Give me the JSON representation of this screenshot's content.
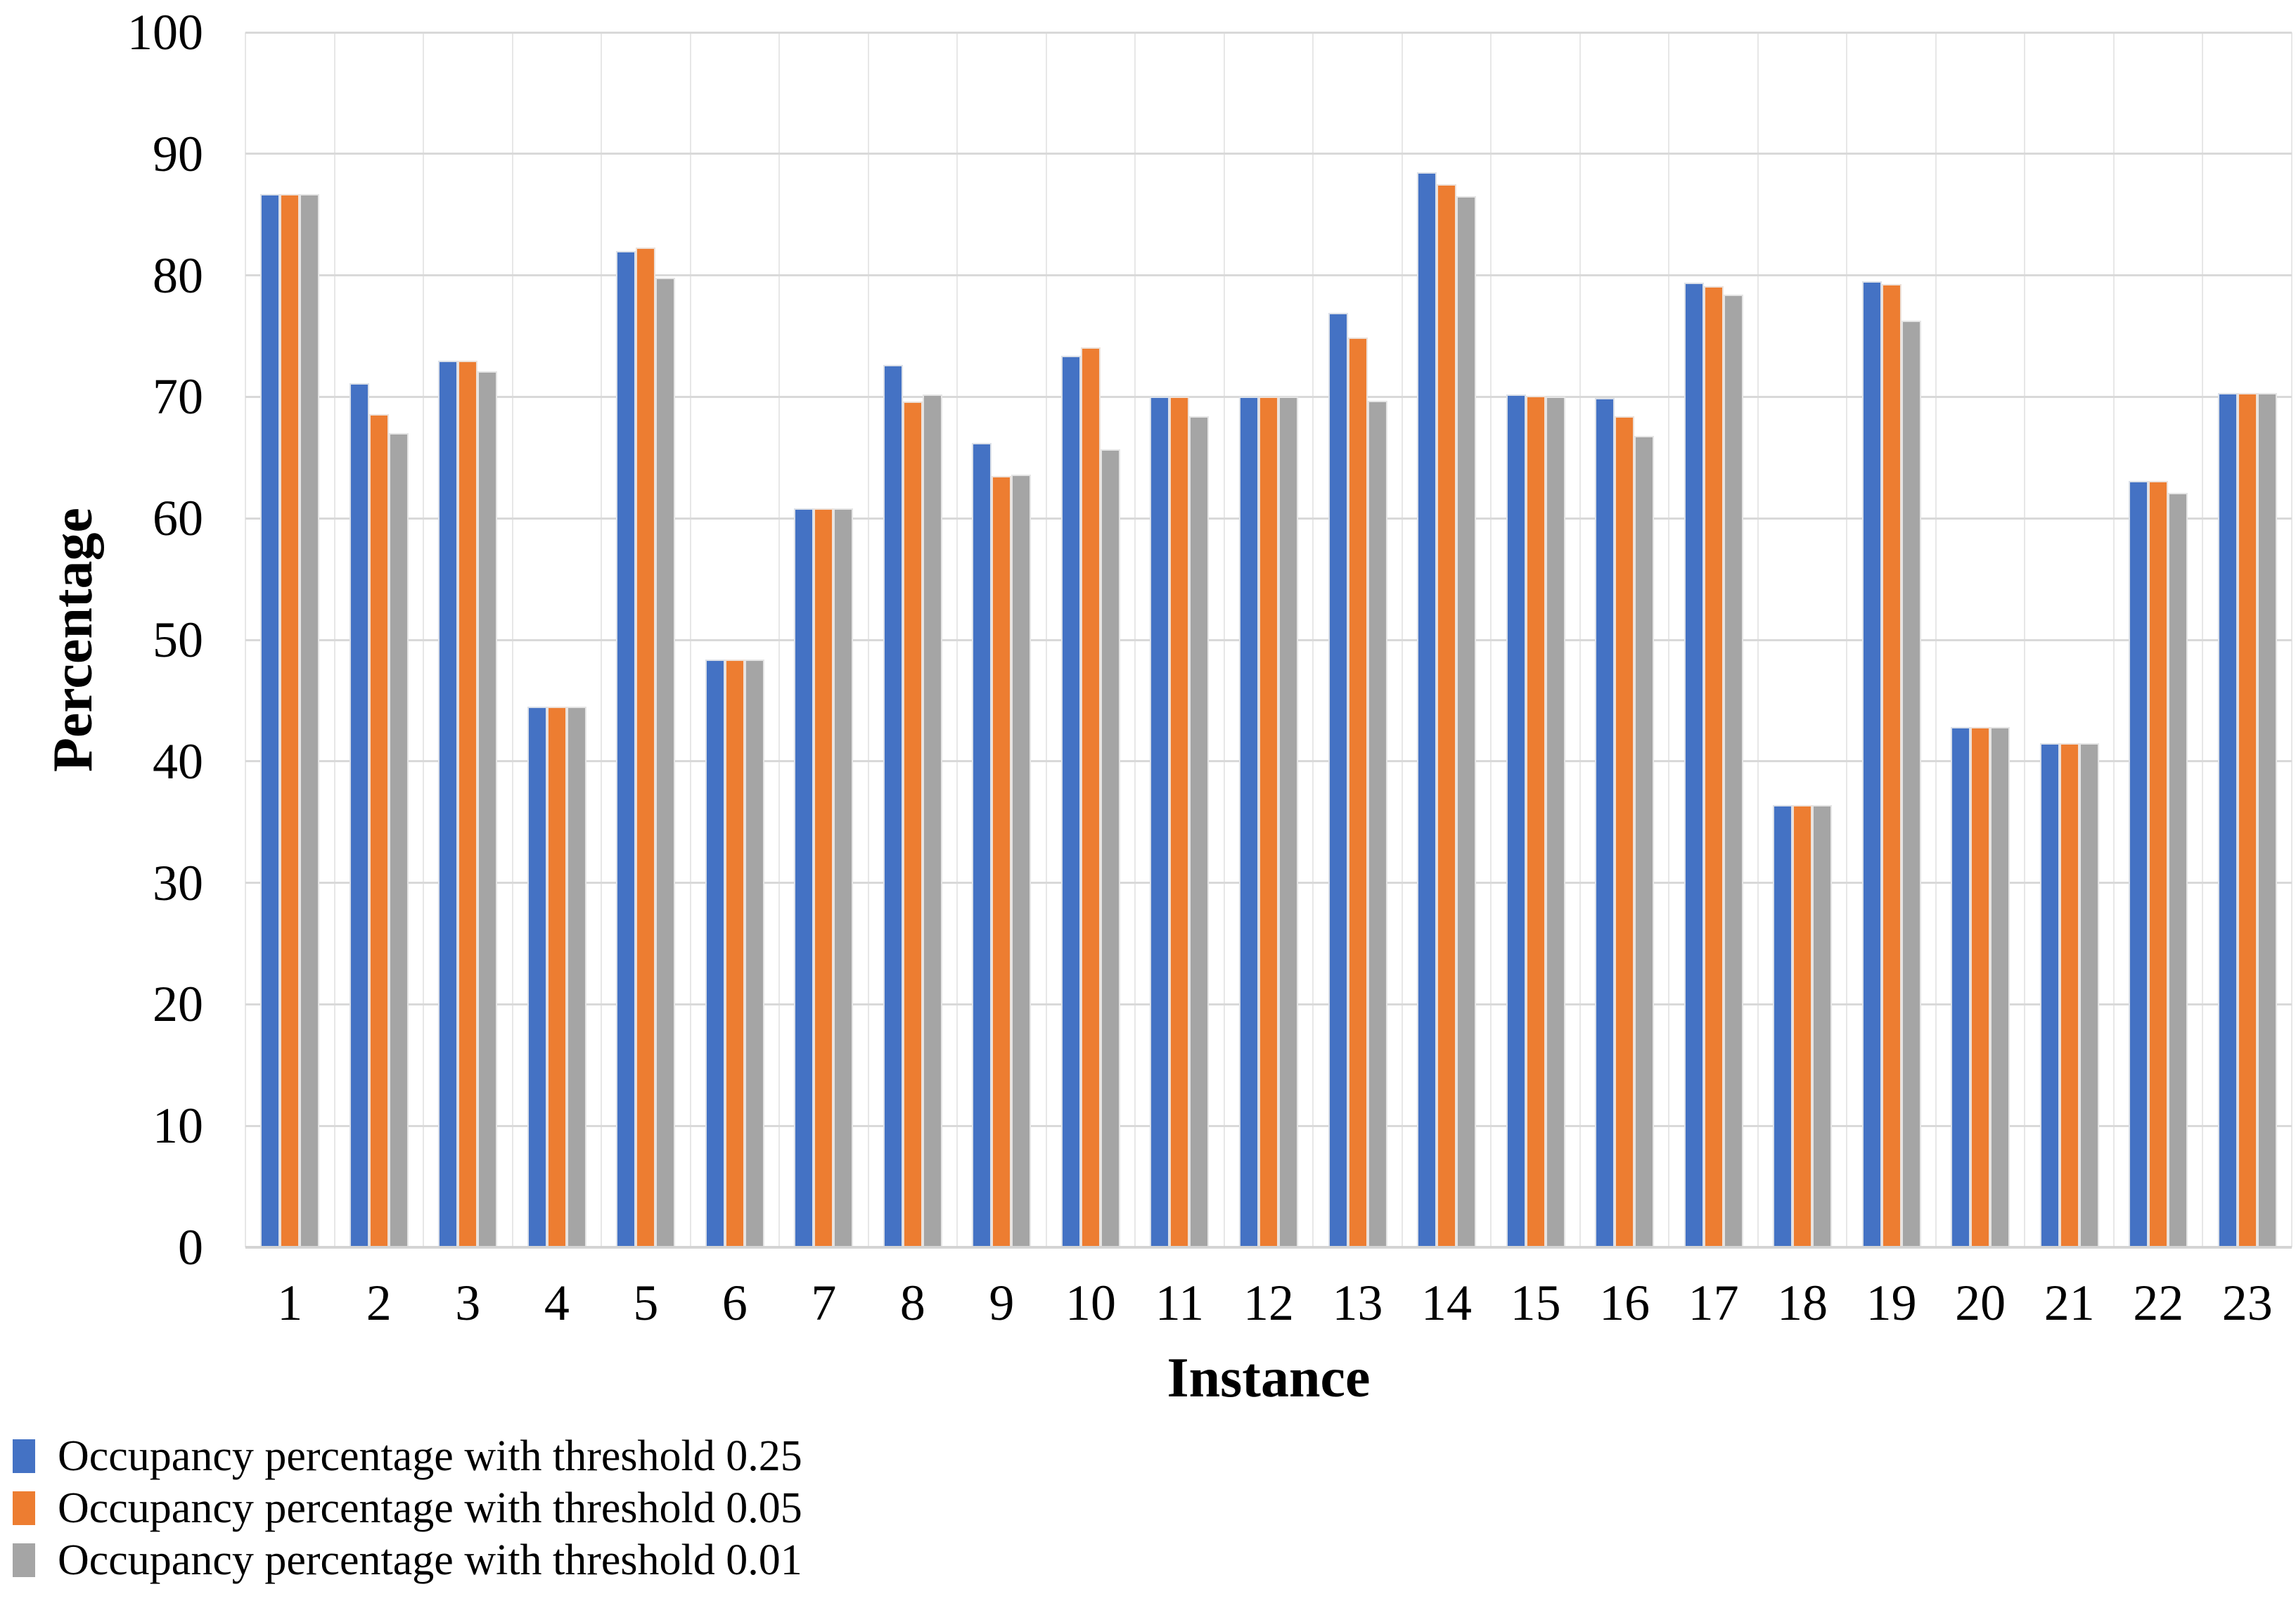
{
  "chart_data": {
    "type": "bar",
    "title": "",
    "xlabel": "Instance",
    "ylabel": "Percentage",
    "ylim": [
      0,
      100
    ],
    "ytick_step": 10,
    "grid": {
      "horizontal": true,
      "vertical": true
    },
    "legend_position": "bottom-left",
    "categories": [
      "1",
      "2",
      "3",
      "4",
      "5",
      "6",
      "7",
      "8",
      "9",
      "10",
      "11",
      "12",
      "13",
      "14",
      "15",
      "16",
      "17",
      "18",
      "19",
      "20",
      "21",
      "22",
      "23"
    ],
    "series": [
      {
        "name": "Occupancy percentage with threshold 0.25",
        "color": "#4472C4",
        "values": [
          86.7,
          71.1,
          73.0,
          44.5,
          82.0,
          48.4,
          60.8,
          72.6,
          66.2,
          73.4,
          70.0,
          70.0,
          76.9,
          88.5,
          70.2,
          69.9,
          79.4,
          36.4,
          79.5,
          42.8,
          41.5,
          63.1,
          70.3
        ]
      },
      {
        "name": "Occupancy percentage with threshold 0.05",
        "color": "#ED7D31",
        "values": [
          86.7,
          68.6,
          73.0,
          44.5,
          82.3,
          48.4,
          60.8,
          69.6,
          63.5,
          74.1,
          70.0,
          70.0,
          74.9,
          87.5,
          70.1,
          68.4,
          79.1,
          36.4,
          79.3,
          42.8,
          41.5,
          63.1,
          70.3
        ]
      },
      {
        "name": "Occupancy percentage with threshold 0.01",
        "color": "#A5A5A5",
        "values": [
          86.7,
          67.0,
          72.1,
          44.5,
          79.8,
          48.4,
          60.8,
          70.2,
          63.6,
          65.7,
          68.4,
          70.0,
          69.7,
          86.5,
          70.0,
          66.8,
          78.4,
          36.4,
          76.3,
          42.8,
          41.5,
          62.1,
          70.3
        ]
      }
    ]
  }
}
